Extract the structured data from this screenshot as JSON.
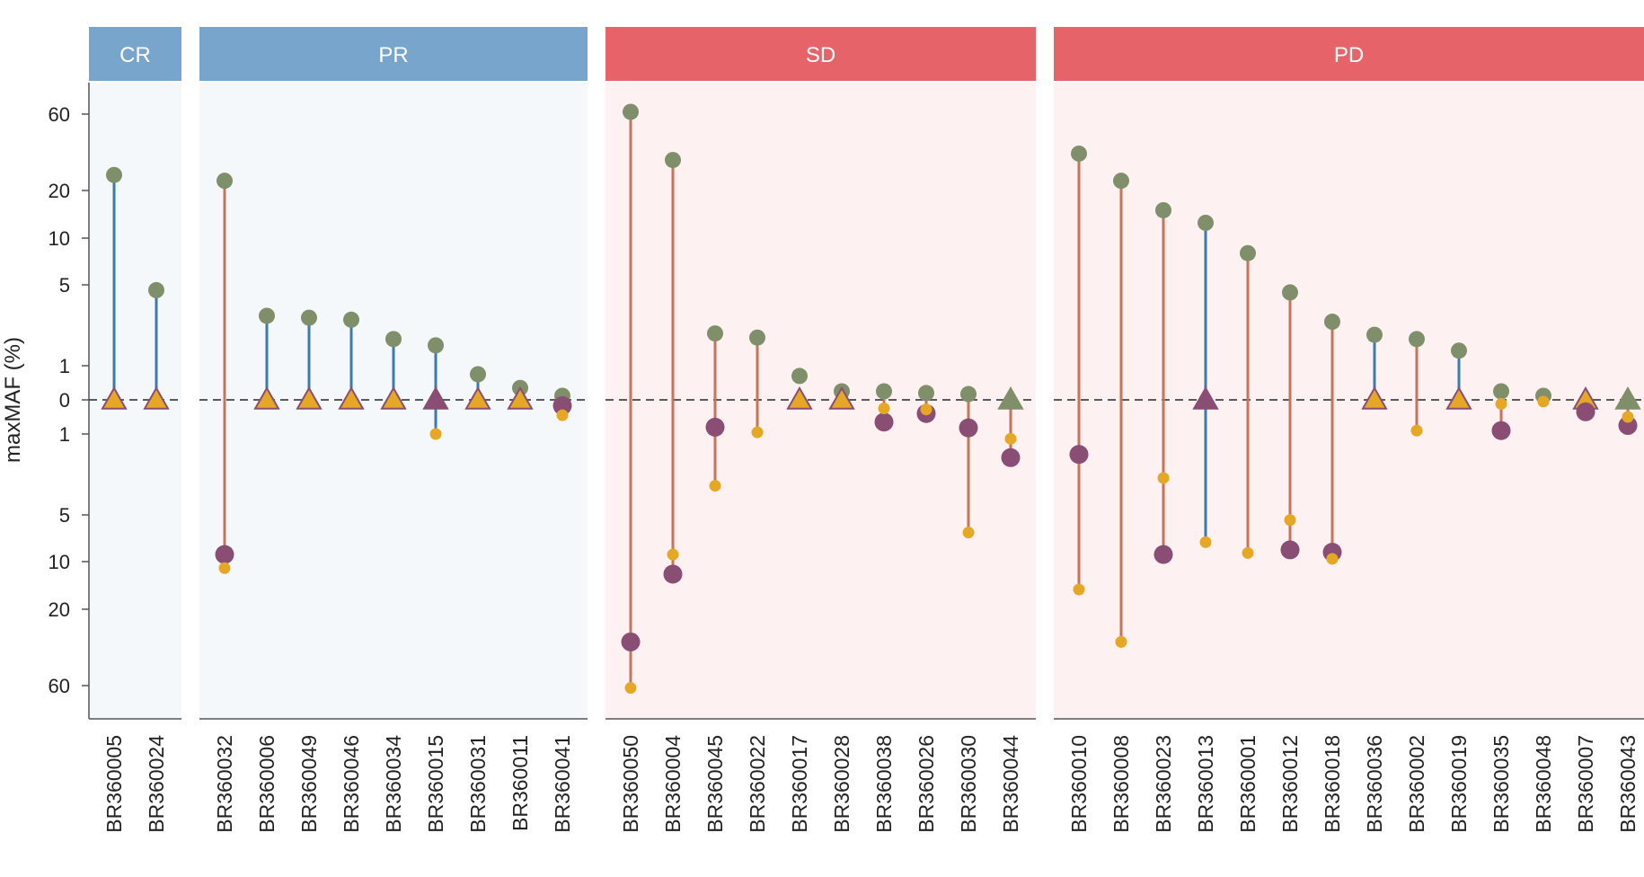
{
  "chart_data": {
    "type": "dumbbell",
    "ylabel": "maxMAF (%)",
    "upper_ticks": [
      "60",
      "20",
      "10",
      "5",
      "1",
      "0"
    ],
    "lower_ticks": [
      "1",
      "5",
      "10",
      "20",
      "60"
    ],
    "upper_tick_values": [
      60,
      20,
      10,
      5,
      1,
      0
    ],
    "lower_tick_values": [
      1,
      5,
      10,
      20,
      60
    ],
    "colors": {
      "cr_pr_header": "#77a5cb",
      "sd_pd_header": "#e66469",
      "cr_pr_bg": "#f5f8fb",
      "sd_pd_bg": "#fdf1f2",
      "decrease_line": "#3a7bb0",
      "increase_line": "#c8745a",
      "baseline_point": "#7f8f6a",
      "post_point": "#8a4e74",
      "small_point": "#e6a824",
      "triangle_fill": "#e6a824",
      "triangle_stroke": "#8a4e74"
    },
    "panels": [
      {
        "name": "CR",
        "samples": [
          {
            "id": "BR360005",
            "top": 25,
            "bottom_large": "tri",
            "bottom_small": null,
            "line": "blue"
          },
          {
            "id": "BR360024",
            "top": 4.5,
            "bottom_large": "tri",
            "bottom_small": null,
            "line": "blue"
          }
        ]
      },
      {
        "name": "PR",
        "samples": [
          {
            "id": "BR360032",
            "top": 23,
            "bottom_large": 9,
            "bottom_small": 11,
            "line": "orange"
          },
          {
            "id": "BR360006",
            "top": 2.7,
            "bottom_large": "tri",
            "bottom_small": null,
            "line": "blue"
          },
          {
            "id": "BR360049",
            "top": 2.6,
            "bottom_large": "tri",
            "bottom_small": null,
            "line": "blue"
          },
          {
            "id": "BR360046",
            "top": 2.5,
            "bottom_large": "tri",
            "bottom_small": null,
            "line": "blue"
          },
          {
            "id": "BR360034",
            "top": 1.7,
            "bottom_large": "tri",
            "bottom_small": null,
            "line": "blue"
          },
          {
            "id": "BR360015",
            "top": 1.5,
            "bottom_large": "tri_purple",
            "bottom_small": 1,
            "line": "blue"
          },
          {
            "id": "BR360031",
            "top": 0.75,
            "bottom_large": "tri",
            "bottom_small": null,
            "line": "blue"
          },
          {
            "id": "BR360011",
            "top": 0.35,
            "bottom_large": "tri",
            "bottom_small": null,
            "line": "blue"
          },
          {
            "id": "BR360041",
            "top": 0.12,
            "bottom_large": 0.17,
            "bottom_small": 0.45,
            "line": "none"
          }
        ]
      },
      {
        "name": "SD",
        "samples": [
          {
            "id": "BR360050",
            "top": 62,
            "bottom_large": 32,
            "bottom_small": 62,
            "line": "orange"
          },
          {
            "id": "BR360004",
            "top": 31,
            "bottom_large": 12,
            "bottom_small": 9,
            "line": "orange"
          },
          {
            "id": "BR360045",
            "top": 1.9,
            "bottom_large": 0.8,
            "bottom_small": 2.8,
            "line": "orange"
          },
          {
            "id": "BR360022",
            "top": 1.75,
            "bottom_large": null,
            "bottom_small": 0.95,
            "line": "orange"
          },
          {
            "id": "BR360017",
            "top": 0.7,
            "bottom_large": "tri",
            "bottom_small": null,
            "line": "none"
          },
          {
            "id": "BR360028",
            "top": 0.25,
            "bottom_large": "tri",
            "bottom_small": null,
            "line": "none"
          },
          {
            "id": "BR360038",
            "top": 0.25,
            "bottom_large": 0.65,
            "bottom_small": 0.25,
            "line": "orange"
          },
          {
            "id": "BR360026",
            "top": 0.2,
            "bottom_large": 0.4,
            "bottom_small": 0.28,
            "line": "orange"
          },
          {
            "id": "BR360030",
            "top": 0.17,
            "bottom_large": 0.82,
            "bottom_small": 6.5,
            "line": "orange"
          },
          {
            "id": "BR360044",
            "top": "tri_green",
            "bottom_large": 1.6,
            "bottom_small": 1.1,
            "line": "orange"
          }
        ]
      },
      {
        "name": "PD",
        "samples": [
          {
            "id": "BR360010",
            "top": 34,
            "bottom_large": 1.5,
            "bottom_small": 15,
            "line": "orange"
          },
          {
            "id": "BR360008",
            "top": 23,
            "bottom_large": null,
            "bottom_small": 32,
            "line": "orange"
          },
          {
            "id": "BR360023",
            "top": 15,
            "bottom_large": 9,
            "bottom_small": 2.4,
            "line": "orange"
          },
          {
            "id": "BR360013",
            "top": 12.5,
            "bottom_large": "tri_purple",
            "bottom_small": 7.5,
            "line": "blue"
          },
          {
            "id": "BR360001",
            "top": 8,
            "bottom_large": null,
            "bottom_small": 8.8,
            "line": "orange"
          },
          {
            "id": "BR360012",
            "top": 4.3,
            "bottom_large": 8.4,
            "bottom_small": 5.4,
            "line": "orange"
          },
          {
            "id": "BR360018",
            "top": 2.4,
            "bottom_large": 8.7,
            "bottom_small": 9.6,
            "line": "orange"
          },
          {
            "id": "BR360036",
            "top": 1.85,
            "bottom_large": "tri",
            "bottom_small": null,
            "line": "blue"
          },
          {
            "id": "BR360002",
            "top": 1.7,
            "bottom_large": null,
            "bottom_small": 0.9,
            "line": "orange"
          },
          {
            "id": "BR360019",
            "top": 1.35,
            "bottom_large": "tri",
            "bottom_small": null,
            "line": "blue"
          },
          {
            "id": "BR360035",
            "top": 0.25,
            "bottom_large": 0.9,
            "bottom_small": 0.12,
            "line": "orange"
          },
          {
            "id": "BR360048",
            "top": 0.12,
            "bottom_large": null,
            "bottom_small": 0.05,
            "line": "none"
          },
          {
            "id": "BR360007",
            "top": "tri",
            "bottom_large": 0.35,
            "bottom_small": null,
            "line": "none"
          },
          {
            "id": "BR360043",
            "top": "tri_green",
            "bottom_large": 0.75,
            "bottom_small": 0.5,
            "line": "orange"
          }
        ]
      }
    ]
  }
}
